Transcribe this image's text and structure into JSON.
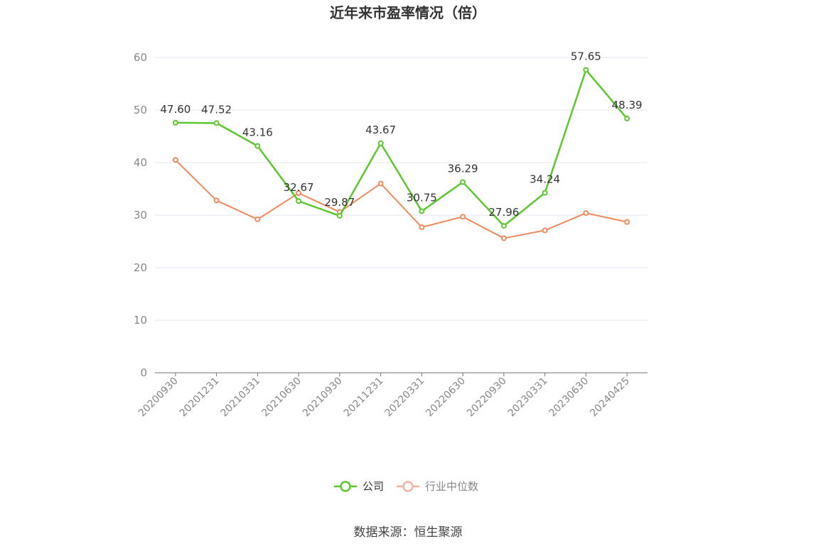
{
  "chart_data": {
    "type": "line",
    "title": "近年来市盈率情况（倍）",
    "categories": [
      "20200930",
      "20201231",
      "20210331",
      "20210630",
      "20210930",
      "20211231",
      "20220331",
      "20220630",
      "20220930",
      "20230331",
      "20230630",
      "20240425"
    ],
    "series": [
      {
        "name": "公司",
        "color": "#5cc72e",
        "values": [
          47.6,
          47.52,
          43.16,
          32.67,
          29.87,
          43.67,
          30.75,
          36.29,
          27.96,
          34.24,
          57.65,
          48.39
        ],
        "labels": [
          "47.60",
          "47.52",
          "43.16",
          "32.67",
          "29.87",
          "43.67",
          "30.75",
          "36.29",
          "27.96",
          "34.24",
          "57.65",
          "48.39"
        ]
      },
      {
        "name": "行业中位数",
        "color": "#f08a5d",
        "legend_color": "#f5b4a0",
        "values": [
          40.5,
          32.8,
          29.2,
          34.2,
          30.6,
          36.0,
          27.7,
          29.7,
          25.6,
          27.1,
          30.4,
          28.7
        ]
      }
    ],
    "yticks": [
      0,
      10,
      20,
      30,
      40,
      50,
      60
    ],
    "ylim": [
      0,
      60
    ],
    "grid": true,
    "legend_position": "bottom"
  },
  "source": "数据来源：恒生聚源"
}
